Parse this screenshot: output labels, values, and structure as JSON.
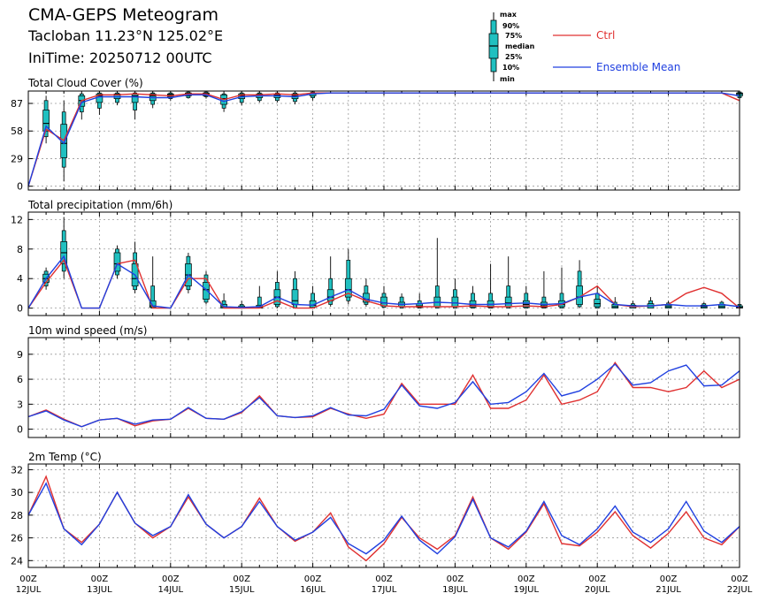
{
  "header": {
    "title": "CMA-GEPS Meteogram",
    "station": "Tacloban 11.23°N 125.02°E",
    "init_time": "IniTime: 20250712 00UTC"
  },
  "legend": {
    "box_labels": [
      "max",
      "90%",
      "75%",
      "median",
      "25%",
      "10%",
      "min"
    ],
    "series": [
      {
        "name": "Ctrl",
        "color": "#e03030"
      },
      {
        "name": "Ensemble Mean",
        "color": "#2040e0"
      }
    ]
  },
  "colors": {
    "box_fill": "#20c0c0",
    "ctrl": "#e03030",
    "mean": "#2040e0",
    "grid": "#9a9a9a"
  },
  "x_ticks": [
    {
      "top": "00Z",
      "bottom": "12JUL"
    },
    {
      "top": "00Z",
      "bottom": "13JUL"
    },
    {
      "top": "00Z",
      "bottom": "14JUL"
    },
    {
      "top": "00Z",
      "bottom": "15JUL"
    },
    {
      "top": "00Z",
      "bottom": "16JUL"
    },
    {
      "top": "00Z",
      "bottom": "17JUL"
    },
    {
      "top": "00Z",
      "bottom": "18JUL"
    },
    {
      "top": "00Z",
      "bottom": "19JUL"
    },
    {
      "top": "00Z",
      "bottom": "20JUL"
    },
    {
      "top": "00Z",
      "bottom": "21JUL"
    },
    {
      "top": "00Z",
      "bottom": "22JUL"
    }
  ],
  "chart_data": [
    {
      "type": "line",
      "title": "Total Cloud Cover (%)",
      "x_unit": "hours since 2025-07-12 00UTC, 6-hourly",
      "ylim": [
        -4,
        100
      ],
      "yticks": [
        0,
        29,
        58,
        87
      ],
      "grid": true,
      "x": [
        0,
        6,
        12,
        18,
        24,
        30,
        36,
        42,
        48,
        54,
        60,
        66,
        72,
        78,
        84,
        90,
        96,
        102,
        108,
        114,
        120,
        126,
        132,
        138,
        144,
        150,
        156,
        162,
        168,
        174,
        180,
        186,
        192,
        198,
        204,
        210,
        216,
        222,
        228,
        234,
        240
      ],
      "ctrl": [
        0,
        60,
        48,
        90,
        96,
        96,
        97,
        96,
        95,
        97,
        97,
        91,
        96,
        96,
        97,
        96,
        98,
        98,
        98,
        98,
        98,
        98,
        98,
        98,
        98,
        98,
        98,
        98,
        98,
        98,
        98,
        98,
        98,
        98,
        98,
        98,
        98,
        98,
        98,
        98,
        90
      ],
      "mean": [
        0,
        63,
        45,
        88,
        94,
        94,
        94,
        93,
        93,
        96,
        96,
        89,
        94,
        95,
        95,
        94,
        97,
        98,
        98,
        98,
        98,
        98,
        98,
        98,
        98,
        98,
        98,
        98,
        98,
        98,
        98,
        98,
        98,
        98,
        98,
        98,
        98,
        98,
        98,
        98,
        95
      ],
      "boxes": [
        {
          "x": 6,
          "min": 45,
          "p10": 52,
          "p25": 58,
          "median": 66,
          "p75": 80,
          "p90": 90,
          "max": 95
        },
        {
          "x": 12,
          "min": 5,
          "p10": 20,
          "p25": 30,
          "median": 45,
          "p75": 65,
          "p90": 78,
          "max": 90
        },
        {
          "x": 18,
          "min": 70,
          "p10": 78,
          "p25": 84,
          "median": 90,
          "p75": 95,
          "p90": 97,
          "max": 98
        },
        {
          "x": 24,
          "min": 75,
          "p10": 82,
          "p25": 88,
          "median": 95,
          "p75": 97,
          "p90": 98,
          "max": 99
        },
        {
          "x": 30,
          "min": 85,
          "p10": 88,
          "p25": 92,
          "median": 96,
          "p75": 97,
          "p90": 98,
          "max": 99
        },
        {
          "x": 36,
          "min": 70,
          "p10": 80,
          "p25": 88,
          "median": 95,
          "p75": 97,
          "p90": 98,
          "max": 99
        },
        {
          "x": 42,
          "min": 82,
          "p10": 86,
          "p25": 90,
          "median": 95,
          "p75": 97,
          "p90": 98,
          "max": 99
        },
        {
          "x": 48,
          "min": 90,
          "p10": 92,
          "p25": 94,
          "median": 96,
          "p75": 97,
          "p90": 98,
          "max": 99
        },
        {
          "x": 54,
          "min": 92,
          "p10": 93,
          "p25": 95,
          "median": 97,
          "p75": 98,
          "p90": 99,
          "max": 99
        },
        {
          "x": 60,
          "min": 92,
          "p10": 94,
          "p25": 95,
          "median": 97,
          "p75": 98,
          "p90": 99,
          "max": 99
        },
        {
          "x": 66,
          "min": 78,
          "p10": 82,
          "p25": 86,
          "median": 92,
          "p75": 96,
          "p90": 97,
          "max": 98
        },
        {
          "x": 72,
          "min": 85,
          "p10": 88,
          "p25": 92,
          "median": 95,
          "p75": 97,
          "p90": 98,
          "max": 99
        },
        {
          "x": 78,
          "min": 88,
          "p10": 90,
          "p25": 93,
          "median": 96,
          "p75": 97,
          "p90": 98,
          "max": 99
        },
        {
          "x": 84,
          "min": 88,
          "p10": 90,
          "p25": 93,
          "median": 96,
          "p75": 97,
          "p90": 98,
          "max": 99
        },
        {
          "x": 90,
          "min": 86,
          "p10": 89,
          "p25": 92,
          "median": 95,
          "p75": 97,
          "p90": 98,
          "max": 99
        },
        {
          "x": 96,
          "min": 90,
          "p10": 93,
          "p25": 95,
          "median": 97,
          "p75": 98,
          "p90": 99,
          "max": 99
        },
        {
          "x": 240,
          "min": 90,
          "p10": 93,
          "p25": 95,
          "median": 97,
          "p75": 98,
          "p90": 99,
          "max": 99
        }
      ]
    },
    {
      "type": "line",
      "title": "Total precipitation (mm/6h)",
      "x_unit": "hours since 2025-07-12 00UTC, 6-hourly",
      "ylim": [
        -1,
        13
      ],
      "yticks": [
        0,
        4,
        8,
        12
      ],
      "grid": true,
      "x": [
        0,
        6,
        12,
        18,
        24,
        30,
        36,
        42,
        48,
        54,
        60,
        66,
        72,
        78,
        84,
        90,
        96,
        102,
        108,
        114,
        120,
        126,
        132,
        138,
        144,
        150,
        156,
        162,
        168,
        174,
        180,
        186,
        192,
        198,
        204,
        210,
        216,
        222,
        228,
        234,
        240
      ],
      "ctrl": [
        0,
        3.5,
        6.5,
        0,
        0,
        6,
        6.5,
        0,
        0,
        4,
        4,
        0,
        0,
        0,
        1,
        0,
        0,
        1,
        2,
        1,
        0.3,
        0.2,
        0.2,
        0.2,
        0.2,
        0.3,
        0.2,
        0.2,
        0.3,
        0.2,
        0.5,
        1.5,
        3,
        0.5,
        0.2,
        0.3,
        0.5,
        2,
        2.8,
        2,
        0
      ],
      "mean": [
        0,
        4,
        7,
        0,
        0,
        6,
        4.5,
        0.3,
        0,
        4.5,
        2.5,
        0.2,
        0.1,
        0.2,
        1.5,
        0.5,
        0.4,
        1.5,
        2.5,
        1.2,
        0.7,
        0.5,
        0.6,
        0.8,
        0.7,
        0.5,
        0.5,
        0.6,
        0.7,
        0.5,
        0.6,
        1.5,
        2,
        0.5,
        0.3,
        0.3,
        0.5,
        0.3,
        0.3,
        0.5,
        0.2
      ],
      "boxes": [
        {
          "x": 6,
          "min": 2.5,
          "p10": 3,
          "p25": 3.5,
          "median": 4,
          "p75": 4.6,
          "p90": 5,
          "max": 5.5
        },
        {
          "x": 12,
          "min": 4,
          "p10": 5,
          "p25": 6,
          "median": 7.5,
          "p75": 9,
          "p90": 10.5,
          "max": 12.3
        },
        {
          "x": 30,
          "min": 4,
          "p10": 4.5,
          "p25": 5,
          "median": 6,
          "p75": 7.5,
          "p90": 8,
          "max": 8.5
        },
        {
          "x": 36,
          "min": 2,
          "p10": 2.5,
          "p25": 3,
          "median": 4,
          "p75": 6,
          "p90": 7.5,
          "max": 9
        },
        {
          "x": 42,
          "min": 0,
          "p10": 0,
          "p25": 0.1,
          "median": 0.3,
          "p75": 1,
          "p90": 3,
          "max": 7
        },
        {
          "x": 54,
          "min": 2,
          "p10": 2.5,
          "p25": 3,
          "median": 4.5,
          "p75": 6,
          "p90": 7,
          "max": 7.5
        },
        {
          "x": 60,
          "min": 0.5,
          "p10": 0.8,
          "p25": 1.2,
          "median": 2.5,
          "p75": 3.5,
          "p90": 4.5,
          "max": 5
        },
        {
          "x": 66,
          "min": 0,
          "p10": 0,
          "p25": 0,
          "median": 0.2,
          "p75": 0.5,
          "p90": 1,
          "max": 2
        },
        {
          "x": 72,
          "min": 0,
          "p10": 0,
          "p25": 0,
          "median": 0.1,
          "p75": 0.3,
          "p90": 0.5,
          "max": 1
        },
        {
          "x": 78,
          "min": 0,
          "p10": 0,
          "p25": 0,
          "median": 0.1,
          "p75": 0.4,
          "p90": 1.5,
          "max": 3
        },
        {
          "x": 84,
          "min": 0,
          "p10": 0.2,
          "p25": 0.5,
          "median": 1.5,
          "p75": 2.5,
          "p90": 3.5,
          "max": 5
        },
        {
          "x": 90,
          "min": 0,
          "p10": 0,
          "p25": 0.5,
          "median": 1,
          "p75": 2.5,
          "p90": 4,
          "max": 5
        },
        {
          "x": 96,
          "min": 0,
          "p10": 0,
          "p25": 0.1,
          "median": 0.4,
          "p75": 1,
          "p90": 2,
          "max": 3
        },
        {
          "x": 102,
          "min": 0.2,
          "p10": 0.5,
          "p25": 1,
          "median": 1.5,
          "p75": 2.5,
          "p90": 4,
          "max": 7
        },
        {
          "x": 108,
          "min": 0.5,
          "p10": 1,
          "p25": 1.5,
          "median": 2.5,
          "p75": 4,
          "p90": 6.5,
          "max": 8
        },
        {
          "x": 114,
          "min": 0.2,
          "p10": 0.5,
          "p25": 0.8,
          "median": 1.2,
          "p75": 2,
          "p90": 3,
          "max": 4
        },
        {
          "x": 120,
          "min": 0,
          "p10": 0.1,
          "p25": 0.3,
          "median": 0.7,
          "p75": 1.5,
          "p90": 2,
          "max": 3
        },
        {
          "x": 126,
          "min": 0,
          "p10": 0,
          "p25": 0.2,
          "median": 0.5,
          "p75": 0.8,
          "p90": 1.5,
          "max": 2
        },
        {
          "x": 132,
          "min": 0,
          "p10": 0,
          "p25": 0.1,
          "median": 0.3,
          "p75": 0.6,
          "p90": 1,
          "max": 2
        },
        {
          "x": 138,
          "min": 0,
          "p10": 0,
          "p25": 0.2,
          "median": 0.8,
          "p75": 1.5,
          "p90": 3,
          "max": 9.5
        },
        {
          "x": 144,
          "min": 0,
          "p10": 0,
          "p25": 0.2,
          "median": 0.7,
          "p75": 1.5,
          "p90": 2.5,
          "max": 4
        },
        {
          "x": 150,
          "min": 0,
          "p10": 0,
          "p25": 0.1,
          "median": 0.4,
          "p75": 1,
          "p90": 2,
          "max": 3
        },
        {
          "x": 156,
          "min": 0,
          "p10": 0,
          "p25": 0.1,
          "median": 0.5,
          "p75": 1,
          "p90": 2,
          "max": 6
        },
        {
          "x": 162,
          "min": 0,
          "p10": 0,
          "p25": 0.2,
          "median": 0.7,
          "p75": 1.5,
          "p90": 3,
          "max": 7
        },
        {
          "x": 168,
          "min": 0,
          "p10": 0,
          "p25": 0.1,
          "median": 0.5,
          "p75": 1,
          "p90": 2,
          "max": 3
        },
        {
          "x": 174,
          "min": 0,
          "p10": 0,
          "p25": 0.1,
          "median": 0.3,
          "p75": 0.8,
          "p90": 1.5,
          "max": 5
        },
        {
          "x": 180,
          "min": 0,
          "p10": 0,
          "p25": 0.2,
          "median": 0.5,
          "p75": 1,
          "p90": 2,
          "max": 5.5
        },
        {
          "x": 186,
          "min": 0,
          "p10": 0.2,
          "p25": 0.5,
          "median": 1.5,
          "p75": 3,
          "p90": 5,
          "max": 6.5
        },
        {
          "x": 192,
          "min": 0,
          "p10": 0,
          "p25": 0.2,
          "median": 0.6,
          "p75": 1.2,
          "p90": 2,
          "max": 3
        },
        {
          "x": 198,
          "min": 0,
          "p10": 0,
          "p25": 0,
          "median": 0.2,
          "p75": 0.5,
          "p90": 0.8,
          "max": 1.5
        },
        {
          "x": 204,
          "min": 0,
          "p10": 0,
          "p25": 0,
          "median": 0.2,
          "p75": 0.4,
          "p90": 0.6,
          "max": 1
        },
        {
          "x": 210,
          "min": 0,
          "p10": 0,
          "p25": 0,
          "median": 0.3,
          "p75": 0.6,
          "p90": 1,
          "max": 1.5
        },
        {
          "x": 216,
          "min": 0,
          "p10": 0,
          "p25": 0,
          "median": 0.2,
          "p75": 0.4,
          "p90": 0.7,
          "max": 1
        },
        {
          "x": 228,
          "min": 0,
          "p10": 0,
          "p25": 0,
          "median": 0.2,
          "p75": 0.4,
          "p90": 0.6,
          "max": 0.8
        },
        {
          "x": 234,
          "min": 0,
          "p10": 0,
          "p25": 0,
          "median": 0.2,
          "p75": 0.5,
          "p90": 0.8,
          "max": 1
        },
        {
          "x": 240,
          "min": 0,
          "p10": 0,
          "p25": 0,
          "median": 0.1,
          "p75": 0.3,
          "p90": 0.5,
          "max": 0.8
        }
      ]
    },
    {
      "type": "line",
      "title": "10m wind speed (m/s)",
      "x_unit": "hours since 2025-07-12 00UTC, 6-hourly",
      "ylim": [
        -1,
        11
      ],
      "yticks": [
        0,
        3,
        6,
        9
      ],
      "grid": true,
      "x": [
        0,
        6,
        12,
        18,
        24,
        30,
        36,
        42,
        48,
        54,
        60,
        66,
        72,
        78,
        84,
        90,
        96,
        102,
        108,
        114,
        120,
        126,
        132,
        138,
        144,
        150,
        156,
        162,
        168,
        174,
        180,
        186,
        192,
        198,
        204,
        210,
        216,
        222,
        228,
        234,
        240
      ],
      "ctrl": [
        1.5,
        2.3,
        1.2,
        0.3,
        1.1,
        1.3,
        0.4,
        1,
        1.2,
        2.5,
        1.3,
        1.2,
        2,
        4,
        1.6,
        1.4,
        1.5,
        2.5,
        1.8,
        1.3,
        1.8,
        5.5,
        3,
        3,
        3,
        6.5,
        2.5,
        2.5,
        3.5,
        6.5,
        3,
        3.5,
        4.5,
        8,
        5,
        5,
        4.5,
        5,
        7,
        5,
        6
      ],
      "mean": [
        1.5,
        2.2,
        1.1,
        0.3,
        1.1,
        1.3,
        0.6,
        1.1,
        1.2,
        2.6,
        1.3,
        1.2,
        2.1,
        3.8,
        1.6,
        1.4,
        1.6,
        2.6,
        1.7,
        1.6,
        2.4,
        5.3,
        2.8,
        2.5,
        3.2,
        5.7,
        3,
        3.2,
        4.5,
        6.7,
        4,
        4.6,
        6,
        7.8,
        5.3,
        5.6,
        7,
        7.7,
        5.2,
        5.3,
        7
      ]
    },
    {
      "type": "line",
      "title": "2m Temp (°C)",
      "x_unit": "hours since 2025-07-12 00UTC, 6-hourly",
      "ylim": [
        23.4,
        32.5
      ],
      "yticks": [
        24,
        26,
        28,
        30,
        32
      ],
      "grid": true,
      "x": [
        0,
        6,
        12,
        18,
        24,
        30,
        36,
        42,
        48,
        54,
        60,
        66,
        72,
        78,
        84,
        90,
        96,
        102,
        108,
        114,
        120,
        126,
        132,
        138,
        144,
        150,
        156,
        162,
        168,
        174,
        180,
        186,
        192,
        198,
        204,
        210,
        216,
        222,
        228,
        234,
        240
      ],
      "ctrl": [
        28,
        31.4,
        26.8,
        25.6,
        27.2,
        30,
        27.3,
        26,
        27,
        29.6,
        27.2,
        26,
        27,
        29.5,
        27,
        25.7,
        26.5,
        28.2,
        25.2,
        24,
        25.5,
        27.8,
        26,
        25,
        26.2,
        29.6,
        26,
        25,
        26.5,
        29,
        25.5,
        25.3,
        26.5,
        28.3,
        26.2,
        25.1,
        26.4,
        28.3,
        26,
        25.4,
        27
      ],
      "mean": [
        28,
        30.8,
        26.8,
        25.4,
        27.2,
        30,
        27.3,
        26.2,
        27,
        29.8,
        27.2,
        26,
        27,
        29.2,
        27,
        25.8,
        26.5,
        27.8,
        25.5,
        24.6,
        25.8,
        27.9,
        25.8,
        24.6,
        26.1,
        29.4,
        26,
        25.2,
        26.6,
        29.2,
        26.2,
        25.4,
        26.8,
        28.8,
        26.5,
        25.6,
        26.8,
        29.2,
        26.6,
        25.6,
        27
      ]
    }
  ]
}
